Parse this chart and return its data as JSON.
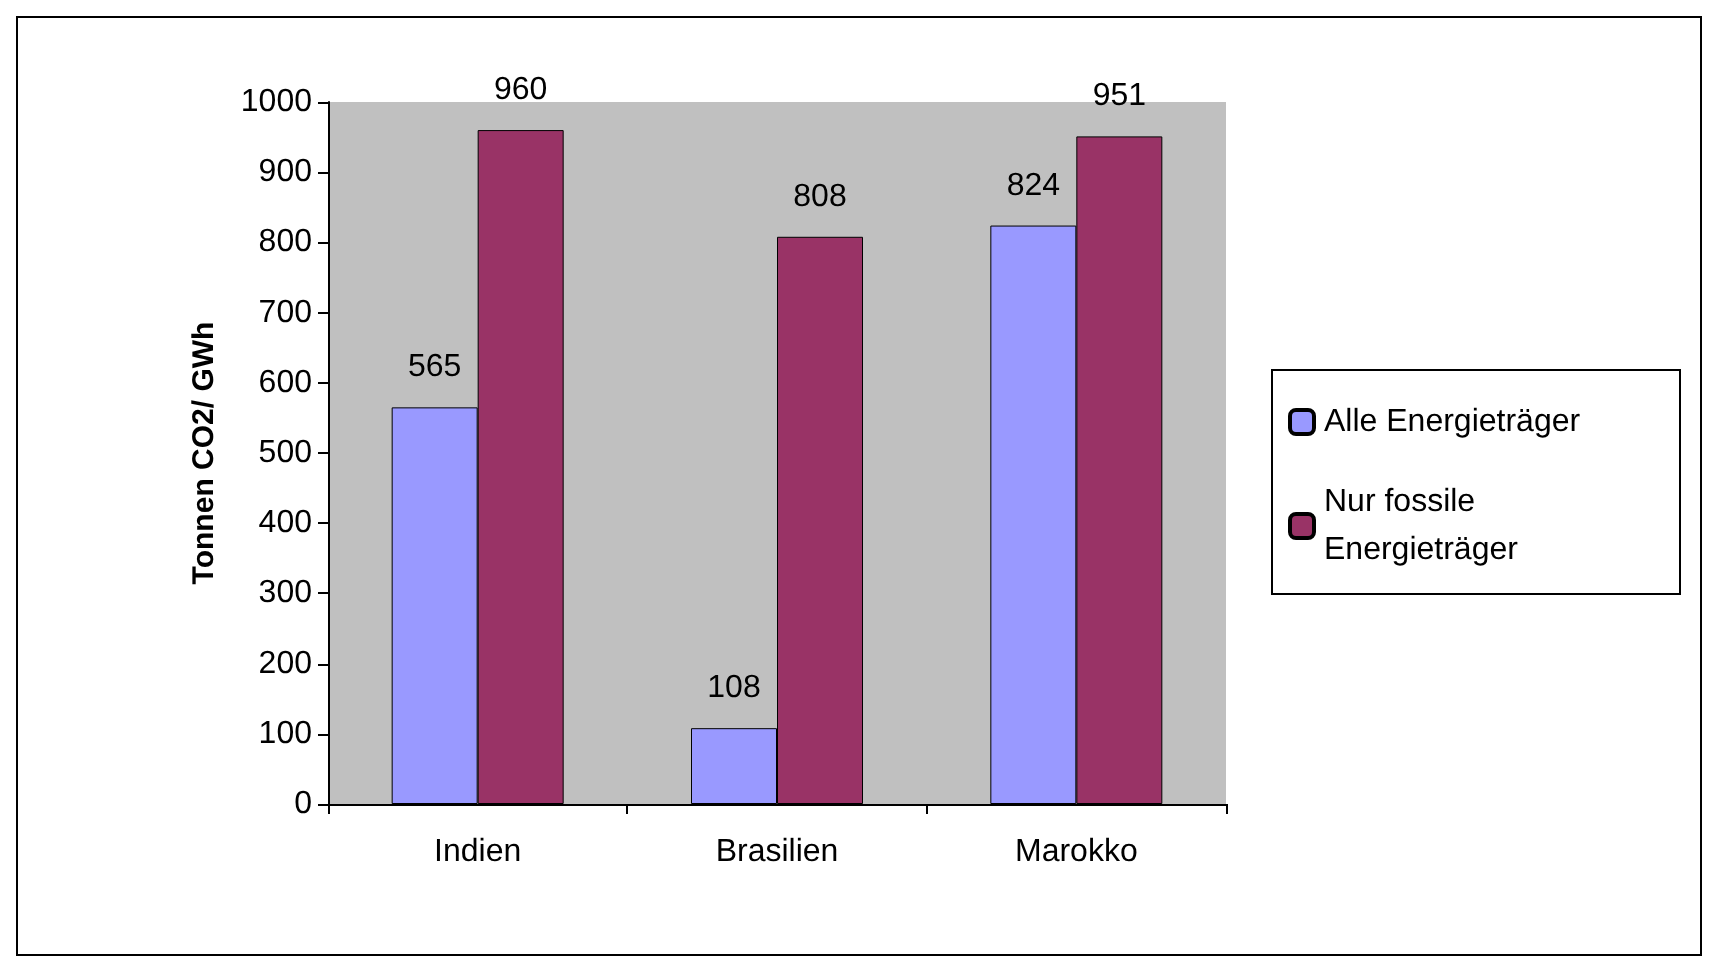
{
  "chart_data": {
    "type": "bar",
    "ylabel": "Tonnen CO2/ GWh",
    "categories": [
      "Indien",
      "Brasilien",
      "Marokko"
    ],
    "series": [
      {
        "name": "Alle Energieträger",
        "color": "#9999ff",
        "values": [
          565,
          108,
          824
        ]
      },
      {
        "name": "Nur fossile Energieträger",
        "color": "#993366",
        "values": [
          960,
          808,
          951
        ]
      }
    ],
    "ylim": [
      0,
      1000
    ],
    "yticks": [
      0,
      100,
      200,
      300,
      400,
      500,
      600,
      700,
      800,
      900,
      1000
    ],
    "data_labels": true,
    "grid": false,
    "legend": "right"
  }
}
